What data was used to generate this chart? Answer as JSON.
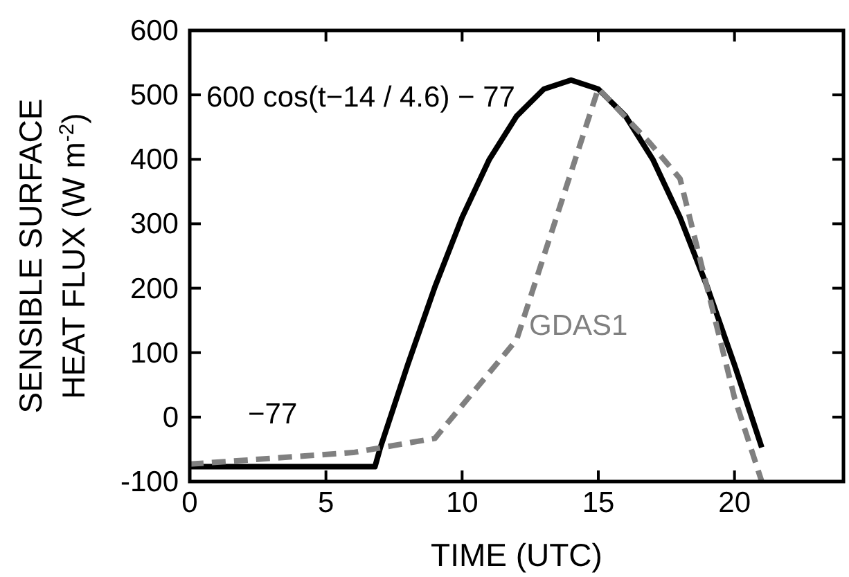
{
  "chart_data": {
    "type": "line",
    "xlabel": "TIME (UTC)",
    "ylabel": "SENSIBLE SURFACE\nHEAT FLUX (W m$^{-2}$)",
    "xlim": [
      0,
      24
    ],
    "xticks": [
      0,
      5,
      10,
      15,
      20
    ],
    "ylim": [
      -100,
      600
    ],
    "yticks": [
      -100,
      0,
      100,
      200,
      300,
      400,
      500,
      600
    ],
    "grid": false,
    "series": [
      {
        "color": "#000000",
        "line_style": "solid",
        "x": [
          0,
          6.8,
          7,
          8,
          9,
          10,
          11,
          12,
          13,
          14,
          15,
          16,
          17,
          18,
          19,
          20,
          21
        ],
        "values": [
          -77,
          -77,
          -47,
          81,
          202,
          310,
          400,
          467,
          509,
          523,
          509,
          467,
          400,
          310,
          202,
          81,
          -47
        ]
      },
      {
        "color": "#808080",
        "line_style": "dashed",
        "x": [
          0,
          6,
          9,
          12,
          15,
          16.9,
          18,
          20,
          21
        ],
        "values": [
          -73,
          -55,
          -33,
          120,
          510,
          425,
          370,
          30,
          -100
        ]
      }
    ],
    "annotations": [
      "600 cos(t−14 / 4.6) − 77",
      "GDAS1",
      "−77"
    ]
  }
}
